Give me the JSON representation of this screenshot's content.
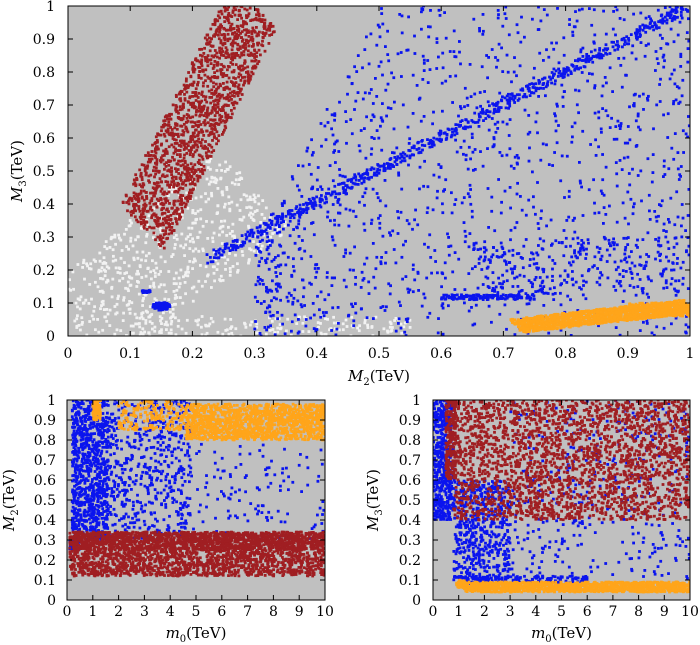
{
  "colors": {
    "background": "#c0c0c0",
    "blue": "#0a14ee",
    "darkred": "#a01e22",
    "orange": "#ffa51a",
    "white": "#f2f2f2"
  },
  "chart_data": [
    {
      "id": "top",
      "type": "scatter",
      "xlabel": {
        "main": "M",
        "sub": "2",
        "unit": "(TeV)"
      },
      "ylabel": {
        "main": "M",
        "sub": "3",
        "unit": "(TeV)"
      },
      "xlim": [
        0,
        1
      ],
      "ylim": [
        0,
        1
      ],
      "xticks": [
        "0",
        "0.1",
        "0.2",
        "0.3",
        "0.4",
        "0.5",
        "0.6",
        "0.7",
        "0.8",
        "0.9",
        "1"
      ],
      "yticks": [
        "0",
        "0.1",
        "0.2",
        "0.3",
        "0.4",
        "0.5",
        "0.6",
        "0.7",
        "0.8",
        "0.9",
        "1"
      ],
      "series": [
        {
          "name": "white",
          "color": "white",
          "regions": [
            {
              "kind": "band",
              "x0": 0.02,
              "y0": 0.01,
              "x1": 0.3,
              "y1": 0.45,
              "width": 0.12,
              "n": 650
            },
            {
              "kind": "rect",
              "x": [
                0.1,
                0.55
              ],
              "y": [
                0,
                0.06
              ],
              "n": 160
            }
          ]
        },
        {
          "name": "darkred",
          "color": "darkred",
          "regions": [
            {
              "kind": "band",
              "x0": 0.12,
              "y0": 0.33,
              "x1": 0.3,
              "y1": 1.0,
              "width": 0.07,
              "n": 1500
            }
          ]
        },
        {
          "name": "blue",
          "color": "blue",
          "regions": [
            {
              "kind": "triangle",
              "x": [
                0.3,
                1.0
              ],
              "n": 1300
            },
            {
              "kind": "rect",
              "x": [
                0.65,
                1.0
              ],
              "y": [
                0.12,
                0.3
              ],
              "n": 260
            },
            {
              "kind": "band",
              "x0": 0.22,
              "y0": 0.23,
              "x1": 1.0,
              "y1": 1.0,
              "width": 0.012,
              "n": 650
            },
            {
              "kind": "rect",
              "x": [
                0.6,
                0.75
              ],
              "y": [
                0.11,
                0.125
              ],
              "n": 130
            },
            {
              "kind": "blob",
              "cx": 0.15,
              "cy": 0.09,
              "rx": 0.014,
              "ry": 0.012,
              "n": 90
            },
            {
              "kind": "blob",
              "cx": 0.125,
              "cy": 0.135,
              "rx": 0.008,
              "ry": 0.004,
              "n": 25
            }
          ]
        },
        {
          "name": "orange",
          "color": "orange",
          "regions": [
            {
              "kind": "band",
              "x0": 0.72,
              "y0": 0.03,
              "x1": 1.0,
              "y1": 0.09,
              "width": 0.02,
              "n": 1300
            },
            {
              "kind": "rect",
              "x": [
                0.9,
                1.0
              ],
              "y": [
                0.06,
                0.1
              ],
              "n": 150
            }
          ]
        }
      ]
    },
    {
      "id": "bottom-left",
      "type": "scatter",
      "xlabel": {
        "main": "m",
        "sub": "0",
        "unit": "(TeV)"
      },
      "ylabel": {
        "main": "M",
        "sub": "2",
        "unit": "(TeV)"
      },
      "xlim": [
        0,
        10
      ],
      "ylim": [
        0,
        1
      ],
      "xticks": [
        "0",
        "1",
        "2",
        "3",
        "4",
        "5",
        "6",
        "7",
        "8",
        "9",
        "10"
      ],
      "yticks": [
        "0",
        "0.1",
        "0.2",
        "0.3",
        "0.4",
        "0.5",
        "0.6",
        "0.7",
        "0.8",
        "0.9",
        "1"
      ],
      "series": [
        {
          "name": "blue",
          "color": "blue",
          "regions": [
            {
              "kind": "rect",
              "x": [
                0.2,
                1.6
              ],
              "y": [
                0.3,
                1.0
              ],
              "n": 900
            },
            {
              "kind": "rect",
              "x": [
                1.6,
                4.8
              ],
              "y": [
                0.3,
                1.0
              ],
              "n": 550
            },
            {
              "kind": "rect",
              "x": [
                4.8,
                10.0
              ],
              "y": [
                0.3,
                0.78
              ],
              "n": 130
            },
            {
              "kind": "rect",
              "x": [
                0.1,
                0.5
              ],
              "y": [
                0.25,
                0.3
              ],
              "n": 40
            }
          ]
        },
        {
          "name": "orange",
          "color": "orange",
          "regions": [
            {
              "kind": "rect",
              "x": [
                4.6,
                10.0
              ],
              "y": [
                0.8,
                0.98
              ],
              "n": 1300
            },
            {
              "kind": "rect",
              "x": [
                2.0,
                4.6
              ],
              "y": [
                0.85,
                1.0
              ],
              "n": 180
            },
            {
              "kind": "rect",
              "x": [
                1.0,
                1.3
              ],
              "y": [
                0.9,
                1.0
              ],
              "n": 80
            }
          ]
        },
        {
          "name": "darkred",
          "color": "darkred",
          "regions": [
            {
              "kind": "rect",
              "x": [
                0.1,
                10.0
              ],
              "y": [
                0.25,
                0.34
              ],
              "n": 1700
            },
            {
              "kind": "rect",
              "x": [
                0.1,
                10.0
              ],
              "y": [
                0.12,
                0.25
              ],
              "n": 1300
            }
          ]
        }
      ]
    },
    {
      "id": "bottom-right",
      "type": "scatter",
      "xlabel": {
        "main": "m",
        "sub": "0",
        "unit": "(TeV)"
      },
      "ylabel": {
        "main": "M",
        "sub": "3",
        "unit": "(TeV)"
      },
      "xlim": [
        0,
        10
      ],
      "ylim": [
        0,
        1
      ],
      "xticks": [
        "0",
        "1",
        "2",
        "3",
        "4",
        "5",
        "6",
        "7",
        "8",
        "9",
        "10"
      ],
      "yticks": [
        "0",
        "0.1",
        "0.2",
        "0.3",
        "0.4",
        "0.5",
        "0.6",
        "0.7",
        "0.8",
        "0.9",
        "1"
      ],
      "series": [
        {
          "name": "blue",
          "color": "blue",
          "regions": [
            {
              "kind": "rect",
              "x": [
                0.0,
                0.8
              ],
              "y": [
                0.4,
                1.0
              ],
              "n": 500
            },
            {
              "kind": "rect",
              "x": [
                0.8,
                3.0
              ],
              "y": [
                0.1,
                0.6
              ],
              "n": 550
            },
            {
              "kind": "rect",
              "x": [
                3.0,
                10.0
              ],
              "y": [
                0.1,
                1.0
              ],
              "n": 380
            },
            {
              "kind": "rect",
              "x": [
                1.0,
                6.0
              ],
              "y": [
                0.08,
                0.12
              ],
              "n": 150
            }
          ]
        },
        {
          "name": "darkred",
          "color": "darkred",
          "regions": [
            {
              "kind": "rect",
              "x": [
                0.8,
                10.0
              ],
              "y": [
                0.4,
                1.0
              ],
              "n": 2400
            },
            {
              "kind": "rect",
              "x": [
                0.5,
                0.9
              ],
              "y": [
                0.6,
                1.0
              ],
              "n": 200
            }
          ]
        },
        {
          "name": "orange",
          "color": "orange",
          "regions": [
            {
              "kind": "rect",
              "x": [
                1.2,
                10.0
              ],
              "y": [
                0.04,
                0.09
              ],
              "n": 1300
            },
            {
              "kind": "blob",
              "cx": 1.1,
              "cy": 0.08,
              "rx": 0.2,
              "ry": 0.02,
              "n": 60
            }
          ]
        }
      ]
    }
  ]
}
